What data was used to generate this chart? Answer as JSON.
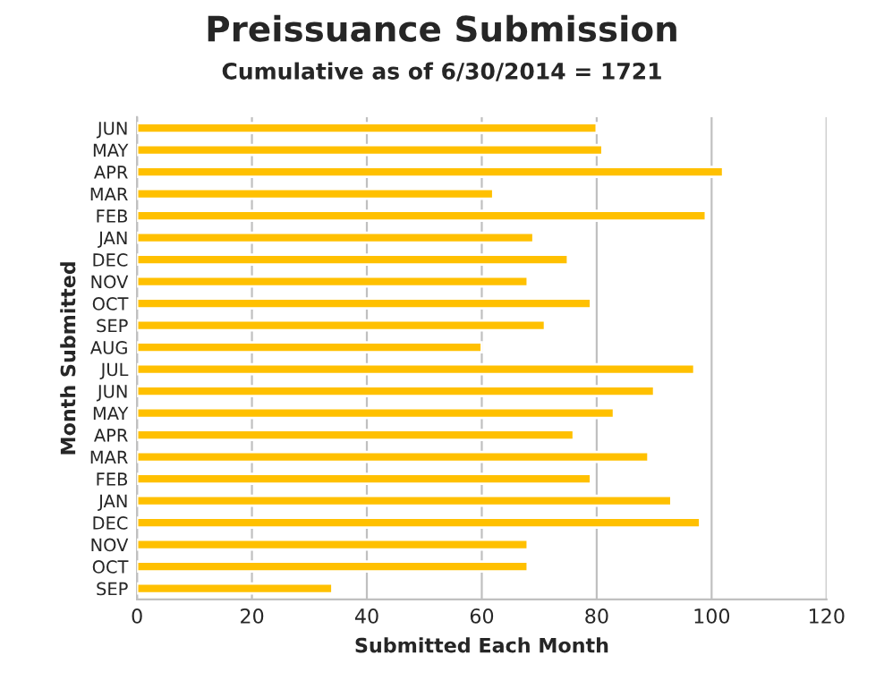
{
  "chart_data": {
    "type": "bar",
    "orientation": "horizontal",
    "title": "Preissuance Submission",
    "subtitle": "Cumulative as of 6/30/2014 = 1721",
    "xlabel": "Submitted Each Month",
    "ylabel": "Month Submitted",
    "categories": [
      "JUN",
      "MAY",
      "APR",
      "MAR",
      "FEB",
      "JAN",
      "DEC",
      "NOV",
      "OCT",
      "SEP",
      "AUG",
      "JUL",
      "JUN",
      "MAY",
      "APR",
      "MAR",
      "FEB",
      "JAN",
      "DEC",
      "NOV",
      "OCT",
      "SEP"
    ],
    "values": [
      80,
      81,
      102,
      62,
      99,
      69,
      75,
      68,
      79,
      71,
      60,
      97,
      90,
      83,
      76,
      89,
      79,
      93,
      98,
      68,
      68,
      34
    ],
    "color": "#ffc000",
    "xlim": [
      0,
      120
    ],
    "xticks": [
      0,
      20,
      40,
      60,
      80,
      100,
      120
    ],
    "grid": "x"
  }
}
